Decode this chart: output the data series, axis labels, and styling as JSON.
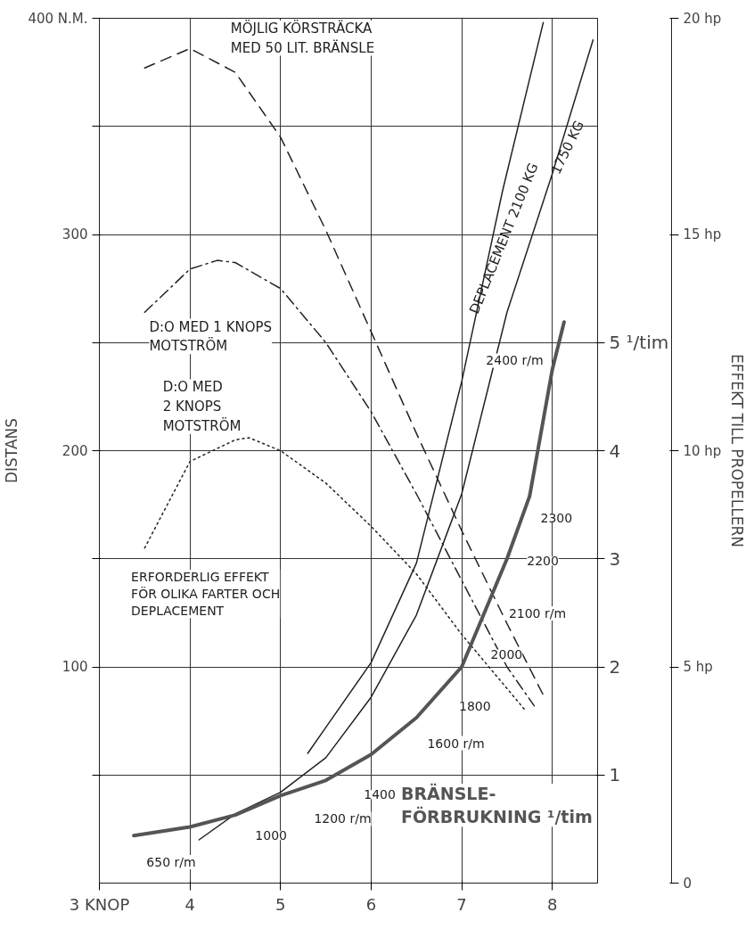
{
  "chart_data": {
    "type": "line",
    "xlim": [
      3,
      8.5
    ],
    "xticks": [
      {
        "value": 3,
        "label": "3 KNOP"
      },
      4,
      5,
      6,
      7,
      8
    ],
    "ylim": [
      0,
      400
    ],
    "yticks": [
      {
        "value": 50,
        "label": null
      },
      100,
      {
        "value": 150,
        "label": null
      },
      200,
      {
        "value": 250,
        "label": null
      },
      300,
      {
        "value": 350,
        "label": null
      },
      {
        "value": 400,
        "label": "400 N.M."
      }
    ],
    "y2lim": [
      0,
      20
    ],
    "y2ticks": [
      0,
      {
        "value": 5,
        "label": "5 hp"
      },
      {
        "value": 10,
        "label": "10 hp"
      },
      {
        "value": 15,
        "label": "15 hp"
      },
      {
        "value": 20,
        "label": "20 hp"
      }
    ],
    "y3lim": [
      0,
      8
    ],
    "y3ticks": [
      1,
      2,
      3,
      4,
      {
        "value": 5,
        "label": "5 ¹/tim"
      }
    ],
    "ylabel": "DISTANS",
    "y2label": "EFFEKT TILL PROPELLERN",
    "grid": true,
    "marker": "none",
    "series": [
      {
        "name": "MÖJLIG KÖRSTRÄCKA\nMED 50 LIT. BRÄNSLE",
        "color": "#222222",
        "line_style": "dashed",
        "x": [
          3.5,
          4,
          4.5,
          5,
          5.5,
          6,
          6.5,
          7,
          7.5,
          7.9
        ],
        "values": [
          377,
          386,
          375,
          345,
          302,
          255,
          208,
          163,
          120,
          87
        ]
      },
      {
        "name": "D:O MED 1 KNOPS\nMOTSTRÖM",
        "color": "#222222",
        "line_style": "dashdot",
        "x": [
          3.5,
          4,
          4.3,
          4.5,
          5,
          5.5,
          6,
          6.5,
          7,
          7.5,
          7.8
        ],
        "values": [
          264,
          284,
          288,
          287,
          275,
          250,
          218,
          180,
          140,
          100,
          82
        ]
      },
      {
        "name": "D:O MED\n2 KNOPS\nMOTSTRÖM",
        "color": "#222222",
        "line_style": "dotted",
        "x": [
          3.5,
          4,
          4.5,
          4.65,
          5,
          5.5,
          6,
          6.5,
          7,
          7.5,
          7.7
        ],
        "values": [
          155,
          195,
          205,
          206,
          200,
          185,
          165,
          143,
          115,
          90,
          80
        ]
      },
      {
        "name": "DEPLACEMENT 2100 KG",
        "color": "#222222",
        "axis": "y2",
        "x": [
          5.3,
          5.5,
          6,
          6.5,
          7,
          7.45,
          7.9
        ],
        "values": [
          3.0,
          3.6,
          5.1,
          7.4,
          11.6,
          16.0,
          19.9
        ]
      },
      {
        "name": "1750 KG",
        "color": "#222222",
        "axis": "y2",
        "x": [
          4.1,
          4.5,
          5,
          5.5,
          6,
          6.5,
          7,
          7.5,
          8,
          8.45
        ],
        "values": [
          1.0,
          1.6,
          2.1,
          2.9,
          4.3,
          6.2,
          9.0,
          13.2,
          16.4,
          19.5
        ]
      },
      {
        "name": "BRÄNSLE-\nFÖRBRUKNING ¹/tim",
        "color": "#555555",
        "axis": "y3",
        "x": [
          3.38,
          4,
          4.5,
          5,
          5.5,
          6,
          6.5,
          7,
          7.5,
          7.75,
          8,
          8.13
        ],
        "values": [
          0.44,
          0.52,
          0.63,
          0.81,
          0.95,
          1.19,
          1.53,
          2.0,
          3.0,
          3.58,
          4.75,
          5.19
        ]
      }
    ],
    "annotations": [
      "ERFORDERLIG EFFEKT\nFÖR OLIKA FARTER OCH\nDEPLACEMENT",
      "650 r/m",
      "1000",
      "1200 r/m",
      "1400",
      "1600 r/m",
      "1800",
      "2000",
      "2100 r/m",
      "2200",
      "2300",
      "2400 r/m"
    ]
  }
}
